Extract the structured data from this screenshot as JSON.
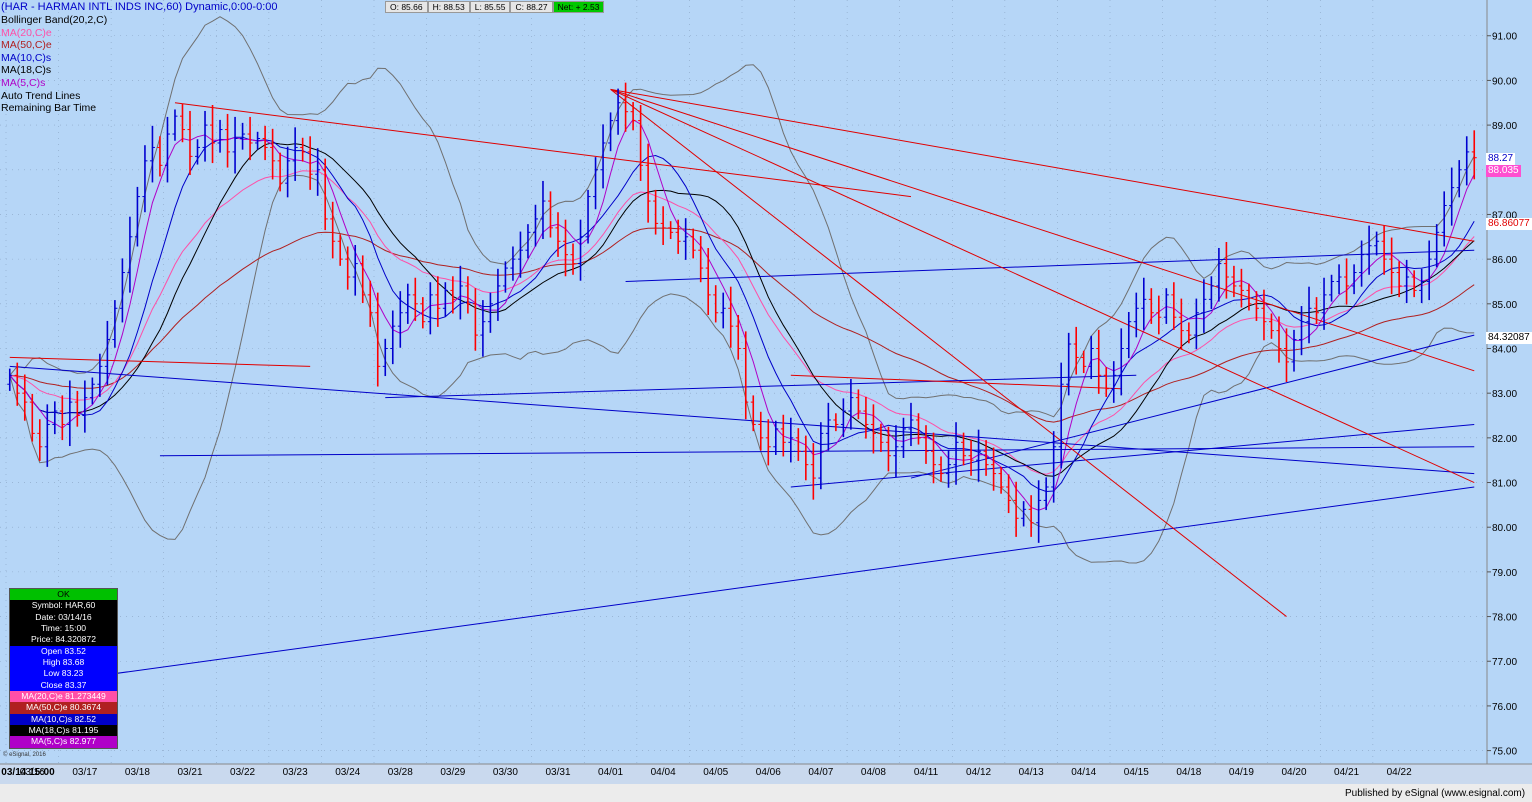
{
  "header": {
    "title": "(HAR - HARMAN INTL INDS INC,60) Dynamic,0:00-0:00",
    "open_label": "O: 85.66",
    "high_label": "H: 88.53",
    "low_label": "L: 85.55",
    "close_label": "C: 88.27",
    "net_label": "Net: + 2.53"
  },
  "studies": [
    {
      "label": "Bollinger Band(20,2,C)",
      "color": "#000000"
    },
    {
      "label": "MA(20,C)e",
      "color": "#ff4fa7"
    },
    {
      "label": "MA(50,C)e",
      "color": "#b02020"
    },
    {
      "label": "MA(10,C)s",
      "color": "#0000c8"
    },
    {
      "label": "MA(18,C)s",
      "color": "#000000"
    },
    {
      "label": "MA(5,C)s",
      "color": "#b000c8"
    },
    {
      "label": "Auto Trend Lines",
      "color": "#000000"
    },
    {
      "label": "Remaining Bar Time",
      "color": "#000000"
    }
  ],
  "data_box": {
    "header": "OK",
    "symbol": "Symbol: HAR,60",
    "date": "Date: 03/14/16",
    "time": "Time: 15:00",
    "price": "Price: 84.320872",
    "open": "Open 83.52",
    "high": "High 83.68",
    "low": "Low 83.23",
    "close": "Close 83.37",
    "ma20": "MA(20,C)e 81.273449",
    "ma50": "MA(50,C)e 80.3674",
    "ma10": "MA(10,C)s 82.52",
    "ma18": "MA(18,C)s 81.195",
    "ma5": "MA(5,C)s 82.977"
  },
  "price_tags": {
    "last": "88.27",
    "ma5": "88.035",
    "cursor_red": "86.86077",
    "cursor": "84.32087"
  },
  "copyright": "© eSignal, 2016",
  "published": "Published by eSignal (www.esignal.com)",
  "colors": {
    "background": "#b6d6f7",
    "up_bar": "#0000d0",
    "down_bar": "#ff0000",
    "support_line": "#0000c8",
    "resistance_line": "#e00000",
    "bollinger": "#707070"
  },
  "chart_data": {
    "type": "ohlc",
    "symbol": "HAR",
    "interval": "60",
    "y_axis_ticks": [
      91.0,
      90.0,
      89.0,
      88.0,
      87.0,
      86.0,
      85.0,
      84.0,
      83.0,
      82.0,
      81.0,
      80.0,
      79.0,
      78.0,
      77.0,
      76.0,
      75.0
    ],
    "x_axis_labels": [
      "03/14 15:00",
      "03/16",
      "03/17",
      "03/18",
      "03/21",
      "03/22",
      "03/23",
      "03/24",
      "03/28",
      "03/29",
      "03/30",
      "03/31",
      "04/01",
      "04/04",
      "04/05",
      "04/06",
      "04/07",
      "04/08",
      "04/11",
      "04/12",
      "04/13",
      "04/14",
      "04/15",
      "04/18",
      "04/19",
      "04/20",
      "04/21",
      "04/22"
    ],
    "ylim": [
      74.7,
      91.8
    ],
    "grid": true,
    "bars_per_day": 7,
    "closes": [
      83.4,
      83.0,
      82.8,
      82.1,
      81.8,
      82.3,
      82.6,
      82.3,
      82.8,
      82.5,
      82.9,
      83.2,
      83.6,
      84.2,
      84.9,
      85.7,
      86.5,
      87.4,
      88.2,
      88.5,
      88.1,
      88.8,
      89.2,
      88.9,
      88.3,
      88.5,
      89.0,
      88.6,
      88.9,
      88.4,
      88.7,
      88.8,
      88.6,
      88.7,
      88.5,
      88.2,
      87.7,
      88.2,
      88.5,
      88.4,
      87.9,
      88.0,
      86.9,
      86.4,
      86.0,
      85.6,
      85.9,
      85.2,
      84.8,
      83.6,
      84.0,
      84.5,
      84.8,
      85.2,
      85.0,
      84.6,
      85.2,
      84.9,
      85.3,
      85.1,
      85.4,
      85.0,
      84.3,
      84.6,
      85.0,
      85.4,
      85.8,
      86.0,
      86.2,
      86.6,
      86.9,
      87.3,
      86.7,
      86.4,
      86.1,
      85.9,
      86.5,
      87.4,
      88.0,
      88.6,
      89.1,
      89.5,
      89.3,
      89.1,
      88.1,
      87.3,
      86.8,
      86.7,
      86.6,
      86.4,
      86.5,
      86.2,
      85.8,
      85.2,
      84.8,
      84.9,
      84.5,
      84.0,
      82.8,
      82.3,
      82.0,
      81.8,
      82.2,
      81.9,
      82.0,
      81.7,
      81.4,
      81.1,
      82.1,
      82.4,
      82.3,
      82.6,
      82.9,
      82.6,
      82.3,
      82.1,
      81.9,
      81.6,
      81.8,
      82.2,
      82.4,
      82.0,
      81.7,
      81.4,
      81.2,
      81.4,
      81.9,
      81.6,
      81.5,
      81.7,
      81.4,
      81.2,
      80.9,
      80.6,
      80.2,
      80.4,
      80.1,
      80.6,
      80.9,
      81.8,
      83.2,
      84.1,
      83.8,
      83.6,
      84.0,
      83.4,
      83.1,
      83.4,
      84.0,
      84.6,
      84.9,
      85.1,
      84.8,
      84.7,
      85.2,
      84.7,
      84.4,
      84.3,
      84.8,
      85.1,
      85.4,
      85.9,
      85.6,
      85.4,
      85.3,
      85.0,
      84.9,
      84.6,
      84.4,
      84.0,
      83.7,
      84.2,
      84.6,
      84.9,
      84.8,
      85.2,
      85.5,
      85.6,
      85.4,
      85.7,
      86.1,
      86.3,
      86.4,
      86.0,
      85.7,
      85.4,
      85.6,
      85.3,
      85.5,
      86.0,
      86.6,
      87.2,
      87.6,
      88.0,
      88.4,
      88.27
    ],
    "support_lines": [
      [
        [
          0,
          83.6
        ],
        [
          200,
          81.2
        ]
      ],
      [
        [
          20,
          81.6
        ],
        [
          200,
          81.8
        ]
      ],
      [
        [
          50,
          82.9
        ],
        [
          150,
          83.4
        ]
      ],
      [
        [
          82,
          85.5
        ],
        [
          240,
          86.2
        ]
      ],
      [
        [
          104,
          80.9
        ],
        [
          210,
          82.3
        ]
      ],
      [
        [
          0,
          76.4
        ],
        [
          300,
          80.9
        ]
      ],
      [
        [
          120,
          81.1
        ],
        [
          220,
          84.3
        ]
      ]
    ],
    "resistance_lines": [
      [
        [
          0,
          83.8
        ],
        [
          40,
          83.6
        ]
      ],
      [
        [
          22,
          89.5
        ],
        [
          120,
          87.4
        ]
      ],
      [
        [
          80,
          89.8
        ],
        [
          240,
          86.4
        ]
      ],
      [
        [
          80,
          89.8
        ],
        [
          230,
          83.5
        ]
      ],
      [
        [
          80,
          89.8
        ],
        [
          170,
          78.0
        ]
      ],
      [
        [
          80,
          89.8
        ],
        [
          215,
          81.0
        ]
      ],
      [
        [
          104,
          83.4
        ],
        [
          148,
          83.1
        ]
      ]
    ]
  }
}
